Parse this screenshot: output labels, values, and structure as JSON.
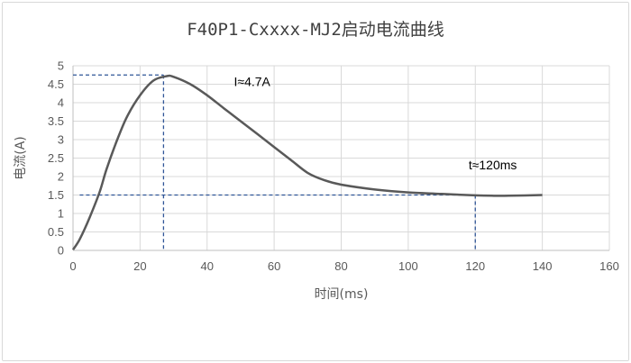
{
  "chart_data": {
    "type": "line",
    "title": "F40P1-Cxxxx-MJ2启动电流曲线",
    "xlabel": "时间(ms)",
    "ylabel": "电流(A)",
    "xlim": [
      0,
      160
    ],
    "ylim": [
      0,
      5
    ],
    "x_ticks": [
      0,
      20,
      40,
      60,
      80,
      100,
      120,
      140,
      160
    ],
    "y_ticks": [
      0,
      0.5,
      1,
      1.5,
      2,
      2.5,
      3,
      3.5,
      4,
      4.5,
      5
    ],
    "grid": true,
    "series": [
      {
        "x": [
          0,
          2,
          5,
          8,
          10,
          13,
          16,
          20,
          24,
          28,
          30,
          35,
          40,
          45,
          50,
          55,
          60,
          65,
          70,
          75,
          80,
          90,
          100,
          110,
          120,
          125,
          130,
          140
        ],
        "y": [
          0.02,
          0.3,
          0.9,
          1.6,
          2.2,
          2.95,
          3.6,
          4.2,
          4.6,
          4.72,
          4.7,
          4.5,
          4.2,
          3.85,
          3.5,
          3.15,
          2.8,
          2.45,
          2.1,
          1.9,
          1.78,
          1.65,
          1.57,
          1.53,
          1.49,
          1.48,
          1.48,
          1.5
        ]
      }
    ],
    "annotations": [
      {
        "text": "I≈4.7A",
        "x": 48,
        "y": 4.45
      },
      {
        "text": "t≈120ms",
        "x": 118,
        "y": 2.2
      }
    ],
    "reference_lines": {
      "peak": {
        "x": 27,
        "y": 4.75
      },
      "settle": {
        "x": 120,
        "y": 1.5
      }
    }
  }
}
